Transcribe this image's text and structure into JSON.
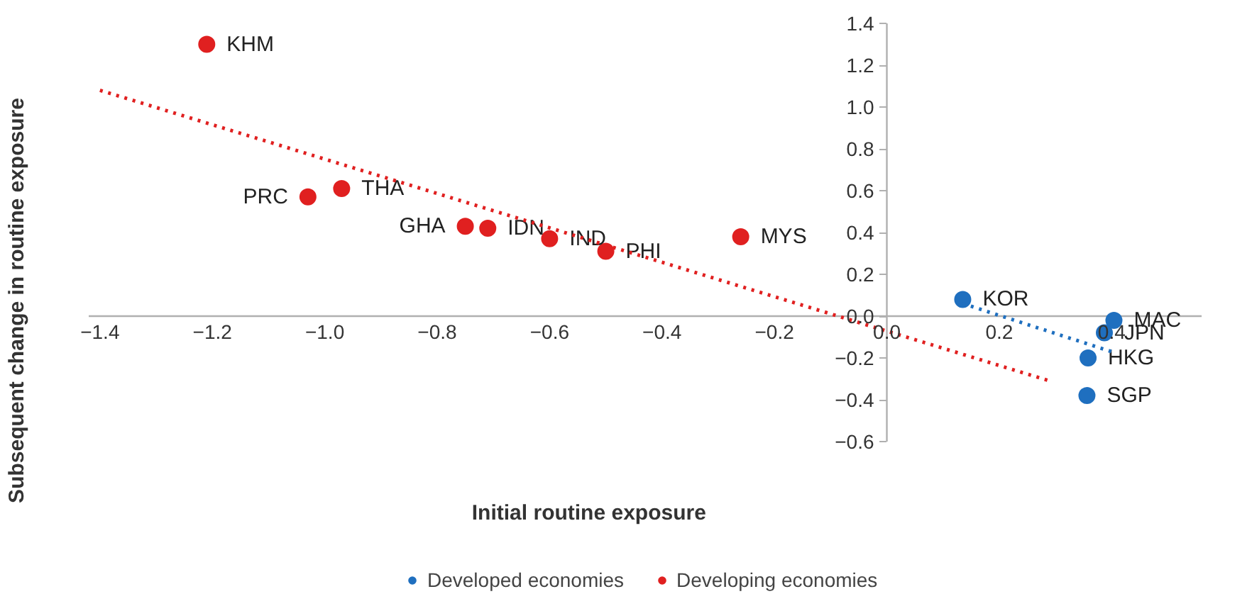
{
  "chart_data": {
    "type": "scatter",
    "xlabel": "Initial routine exposure",
    "ylabel": "Subsequent change in routine exposure",
    "xlim": [
      -1.42,
      0.56
    ],
    "ylim": [
      -0.6,
      1.4
    ],
    "xticks": [
      {
        "value": -1.4,
        "label": "−1.4"
      },
      {
        "value": -1.2,
        "label": "−1.2"
      },
      {
        "value": -1.0,
        "label": "−1.0"
      },
      {
        "value": -0.8,
        "label": "−0.8"
      },
      {
        "value": -0.6,
        "label": "−0.6"
      },
      {
        "value": -0.4,
        "label": "−0.4"
      },
      {
        "value": -0.2,
        "label": "−0.2"
      },
      {
        "value": 0,
        "label": "0.0"
      },
      {
        "value": 0.2,
        "label": "0.2"
      },
      {
        "value": 0.4,
        "label": "0.4"
      }
    ],
    "yticks": [
      {
        "value": -0.6,
        "label": "−0.6"
      },
      {
        "value": -0.4,
        "label": "−0.4"
      },
      {
        "value": -0.2,
        "label": "−0.2"
      },
      {
        "value": 0,
        "label": "0.0"
      },
      {
        "value": 0.2,
        "label": "0.2"
      },
      {
        "value": 0.4,
        "label": "0.4"
      },
      {
        "value": 0.6,
        "label": "0.6"
      },
      {
        "value": 0.8,
        "label": "0.8"
      },
      {
        "value": 1.0,
        "label": "1.0"
      },
      {
        "value": 1.2,
        "label": "1.2"
      },
      {
        "value": 1.4,
        "label": "1.4"
      }
    ],
    "grid": false,
    "legend": "bottom",
    "marker": "circle",
    "series": [
      {
        "name": "Developed economies",
        "color": "#1f6fbf",
        "x": [
          0.135,
          0.404,
          0.387,
          0.358,
          0.356
        ],
        "values": [
          0.08,
          -0.02,
          -0.08,
          -0.2,
          -0.38
        ],
        "value_labels": [
          "KOR",
          "MAC",
          "JPN",
          "HKG",
          "SGP"
        ]
      },
      {
        "name": "Developing economies",
        "color": "#e02020",
        "x": [
          -1.21,
          -1.03,
          -0.97,
          -0.75,
          -0.71,
          -0.6,
          -0.5,
          -0.26
        ],
        "values": [
          1.3,
          0.57,
          0.61,
          0.43,
          0.42,
          0.37,
          0.31,
          0.38
        ],
        "value_labels": [
          "KHM",
          "PRC",
          "THA",
          "GHA",
          "IDN",
          "IND",
          "PHI",
          "MYS"
        ]
      },
      {
        "type": "line",
        "color": "#1f6fbf",
        "line_style": "dotted",
        "marker": "none",
        "x": [
          0.135,
          0.4
        ],
        "values": [
          0.06,
          -0.17
        ]
      },
      {
        "type": "line",
        "color": "#e02020",
        "line_style": "dotted",
        "marker": "none",
        "x": [
          -1.4,
          0.29
        ],
        "values": [
          1.08,
          -0.31
        ]
      }
    ]
  }
}
